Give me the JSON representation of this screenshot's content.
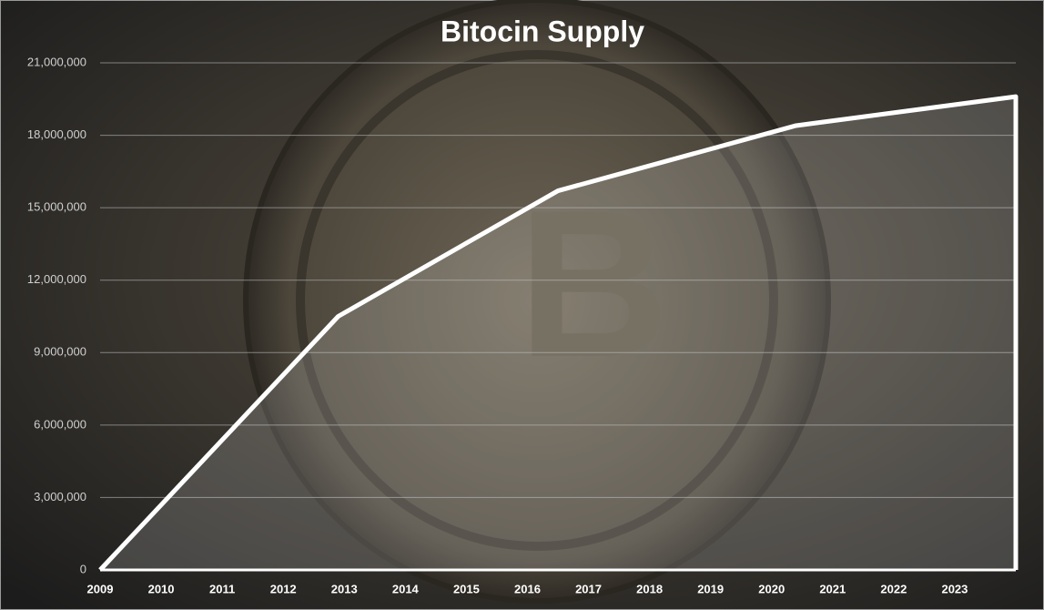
{
  "chart_data": {
    "type": "area",
    "title": "Bitocin Supply",
    "x": [
      2009,
      2012.9,
      2016.5,
      2020.4,
      2024
    ],
    "values": [
      0,
      10500000,
      15700000,
      18400000,
      19600000
    ],
    "color": "#ffffff",
    "xlim": [
      2009,
      2024
    ],
    "xticks": [
      2009,
      2010,
      2011,
      2012,
      2013,
      2014,
      2015,
      2016,
      2017,
      2018,
      2019,
      2020,
      2021,
      2022,
      2023
    ],
    "ylim": [
      0,
      21000000
    ],
    "yticks": [
      0,
      {
        "value": 3000000,
        "label": "3,000,000"
      },
      {
        "value": 6000000,
        "label": "6,000,000"
      },
      {
        "value": 9000000,
        "label": "9,000,000"
      },
      {
        "value": 12000000,
        "label": "12,000,000"
      },
      {
        "value": 15000000,
        "label": "15,000,000"
      },
      {
        "value": 18000000,
        "label": "18,000,000"
      },
      {
        "value": 21000000,
        "label": "21,000,000"
      }
    ],
    "grid": true
  }
}
